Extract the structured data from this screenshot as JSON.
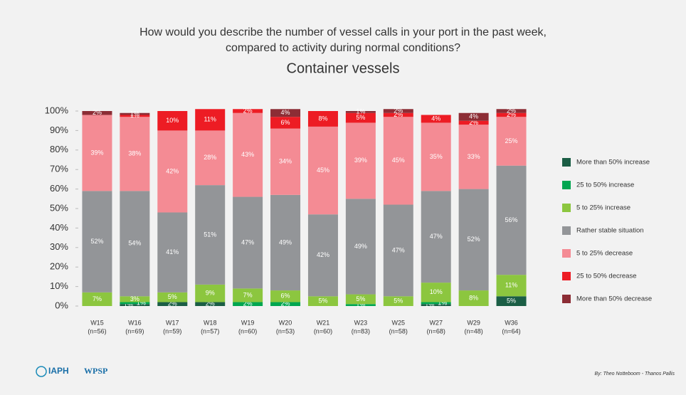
{
  "chart_data": {
    "type": "stacked_bar",
    "title": [
      "How would you describe the number of vessel calls in your port in the past week,",
      "compared to activity during normal conditions?"
    ],
    "subtitle": "Container vessels",
    "categories": [
      "W15",
      "W16",
      "W17",
      "W18",
      "W19",
      "W20",
      "W21",
      "W23",
      "W25",
      "W27",
      "W29",
      "W36"
    ],
    "sample_sizes": [
      "(n=56)",
      "(n=69)",
      "(n=59)",
      "(n=57)",
      "(n=60)",
      "(n=53)",
      "(n=60)",
      "(n=83)",
      "(n=58)",
      "(n=68)",
      "(n=48)",
      "(n=64)"
    ],
    "series": [
      {
        "name": "More than 50% increase",
        "color": "#1b5e45",
        "values": [
          0,
          1,
          2,
          2,
          0,
          0,
          0,
          0,
          0,
          1,
          0,
          5
        ],
        "value_labels": [
          null,
          "1%",
          "2%",
          "2%",
          null,
          null,
          null,
          null,
          null,
          "1%",
          null,
          "5%"
        ]
      },
      {
        "name": "25 to 50% increase",
        "color": "#00a650",
        "values": [
          0,
          1,
          0,
          0,
          2,
          2,
          0,
          1,
          0,
          1,
          0,
          0
        ],
        "value_labels": [
          null,
          "1%",
          null,
          null,
          "2%",
          "2%",
          null,
          "1%",
          null,
          "1%",
          null,
          null
        ]
      },
      {
        "name": "5 to 25% increase",
        "color": "#8cc63f",
        "values": [
          7,
          3,
          5,
          9,
          7,
          6,
          5,
          5,
          5,
          10,
          8,
          11
        ],
        "value_labels": [
          "7%",
          "3%",
          "5%",
          "9%",
          "7%",
          "6%",
          "5%",
          "5%",
          "5%",
          "10%",
          "8%",
          "11%"
        ]
      },
      {
        "name": "Rather stable situation",
        "color": "#939598",
        "values": [
          52,
          54,
          41,
          51,
          47,
          49,
          42,
          49,
          47,
          47,
          52,
          56
        ],
        "value_labels": [
          "52%",
          "54%",
          "41%",
          "51%",
          "47%",
          "49%",
          "42%",
          "49%",
          "47%",
          "47%",
          "52%",
          "56%"
        ]
      },
      {
        "name": "5 to 25% decrease",
        "color": "#f48b94",
        "values": [
          39,
          38,
          42,
          28,
          43,
          34,
          45,
          39,
          45,
          35,
          33,
          25
        ],
        "value_labels": [
          "39%",
          "38%",
          "42%",
          "28%",
          "43%",
          "34%",
          "45%",
          "39%",
          "45%",
          "35%",
          "33%",
          "25%"
        ]
      },
      {
        "name": "25 to 50% decrease",
        "color": "#ed1c24",
        "values": [
          0,
          1,
          10,
          11,
          2,
          6,
          8,
          5,
          2,
          4,
          2,
          2
        ],
        "value_labels": [
          null,
          "1%",
          "10%",
          "11%",
          "2%",
          "6%",
          "8%",
          "5%",
          "2%",
          "4%",
          "2%",
          "2%"
        ]
      },
      {
        "name": "More than 50% decrease",
        "color": "#8c2d35",
        "values": [
          2,
          1,
          0,
          0,
          0,
          4,
          0,
          1,
          2,
          0,
          4,
          2
        ],
        "value_labels": [
          "2%",
          "1%",
          null,
          null,
          null,
          "4%",
          null,
          "1%",
          "2%",
          null,
          "4%",
          "2%"
        ]
      }
    ],
    "ylim": [
      0,
      100
    ],
    "yticks": [
      {
        "value": 0,
        "label": "0%"
      },
      {
        "value": 10,
        "label": "10%"
      },
      {
        "value": 20,
        "label": "20%"
      },
      {
        "value": 30,
        "label": "30%"
      },
      {
        "value": 40,
        "label": "40%"
      },
      {
        "value": 50,
        "label": "50%"
      },
      {
        "value": 60,
        "label": "60%"
      },
      {
        "value": 70,
        "label": "70%"
      },
      {
        "value": 80,
        "label": "80%"
      },
      {
        "value": 90,
        "label": "90%"
      },
      {
        "value": 100,
        "label": "100%"
      }
    ],
    "grid": false,
    "legend": "right"
  },
  "footer": {
    "logos": [
      "IAPH",
      "WPSP"
    ],
    "credit": "By: Theo Notteboom - Thanos Pallis"
  }
}
